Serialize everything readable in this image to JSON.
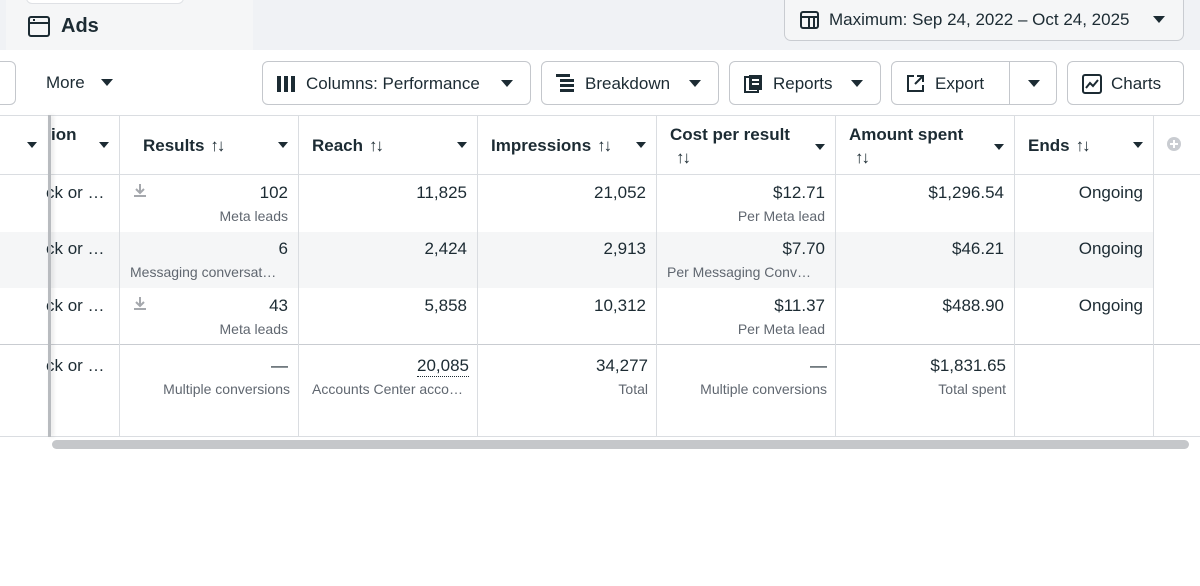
{
  "header": {
    "tab_title": "Ads",
    "date_range": "Maximum: Sep 24, 2022 – Oct 24, 2025"
  },
  "toolbar": {
    "more": "More",
    "columns": "Columns: Performance",
    "breakdown": "Breakdown",
    "reports": "Reports",
    "export": "Export",
    "charts": "Charts"
  },
  "table": {
    "headers": {
      "col0": "ion",
      "results": "Results",
      "reach": "Reach",
      "impressions": "Impressions",
      "cost_per_result_line1": "Cost per result",
      "amount_spent_line1": "Amount spent",
      "ends": "Ends"
    },
    "rows": [
      {
        "col0": "ck or …",
        "results": "102",
        "results_sub": "Meta leads",
        "reach": "11,825",
        "impressions": "21,052",
        "cost": "$12.71",
        "cost_sub": "Per Meta lead",
        "spent": "$1,296.54",
        "ends": "Ongoing"
      },
      {
        "col0": "ck or …",
        "results": "6",
        "results_sub": "Messaging conversat…",
        "reach": "2,424",
        "impressions": "2,913",
        "cost": "$7.70",
        "cost_sub": "Per Messaging Conv…",
        "spent": "$46.21",
        "ends": "Ongoing"
      },
      {
        "col0": "ck or …",
        "results": "43",
        "results_sub": "Meta leads",
        "reach": "5,858",
        "impressions": "10,312",
        "cost": "$11.37",
        "cost_sub": "Per Meta lead",
        "spent": "$488.90",
        "ends": "Ongoing"
      }
    ],
    "totals": {
      "col0": "ck or …",
      "results": "—",
      "results_sub": "Multiple conversions",
      "reach": "20,085",
      "reach_sub": "Accounts Center acco…",
      "impressions": "34,277",
      "impressions_sub": "Total",
      "cost": "—",
      "cost_sub": "Multiple conversions",
      "spent": "$1,831.65",
      "spent_sub": "Total spent"
    }
  },
  "icons": {
    "tab": "ads-page-icon",
    "date": "calendar-icon",
    "columns": "columns-icon",
    "breakdown": "breakdown-icon",
    "reports": "reports-icon",
    "export": "export-icon",
    "charts": "charts-icon",
    "download": "download-icon",
    "add_column": "add-column-icon"
  },
  "colors": {
    "text": "#1c2b33",
    "muted": "#606770",
    "border": "#c4c7cc",
    "row_alt": "#f5f6f7",
    "top_band": "#f0f2f5"
  }
}
